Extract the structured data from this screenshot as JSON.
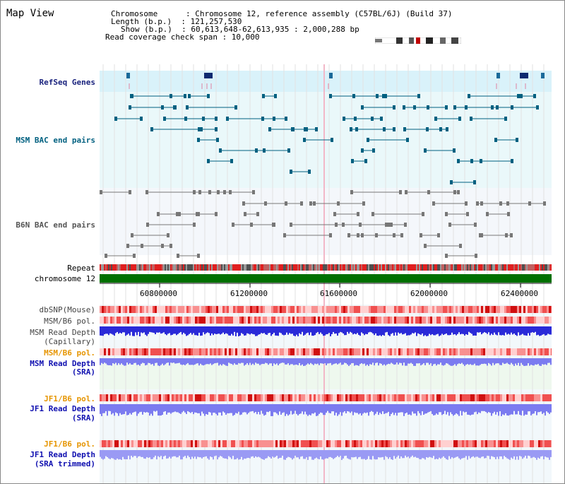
{
  "title": "Map View",
  "info": {
    "chromosome": "Chromosome      : Chromosome 12, reference assembly (C57BL/6J) (Build 37)",
    "length": "Length (b.p.)  : 121,257,530",
    "show": "Show (b.p.)  : 60,613,648-62,613,935 : 2,000,288 bp",
    "coverage": "Read coverage check span : 10,000"
  },
  "tracks": {
    "refseq": "RefSeq Genes",
    "msm_bac": "MSM BAC end pairs",
    "b6n_bac": "B6N BAC end pairs",
    "repeat": "Repeat",
    "chromosome": "chromosome 12",
    "dbsnp": "dbSNP(Mouse)",
    "msm_pol1": "MSM/B6 pol.",
    "msm_depth_cap_1": "MSM Read Depth",
    "msm_depth_cap_2": "(Capillary)",
    "msm_pol2": "MSM/B6 pol.",
    "msm_depth_sra_1": "MSM Read Depth",
    "msm_depth_sra_2": "(SRA)",
    "jf1_pol1": "JF1/B6 pol.",
    "jf1_depth_1": "JF1 Read Depth",
    "jf1_depth_2": "(SRA)",
    "jf1_pol2": "JF1/B6 pol.",
    "jf1_trim_1": "JF1 Read Depth",
    "jf1_trim_2": "(SRA trimmed)"
  },
  "axis": {
    "ticks": [
      "60800000",
      "61200000",
      "61600000",
      "62000000",
      "62400000"
    ]
  },
  "colors": {
    "refseq_bg": "#d9f2fa",
    "track_bg": "#eaf8fa",
    "teal": "#006080",
    "chromosome_bar": "#007000",
    "depth_blue": "#2a2ad8",
    "depth_light": "#7b7bf0"
  }
}
